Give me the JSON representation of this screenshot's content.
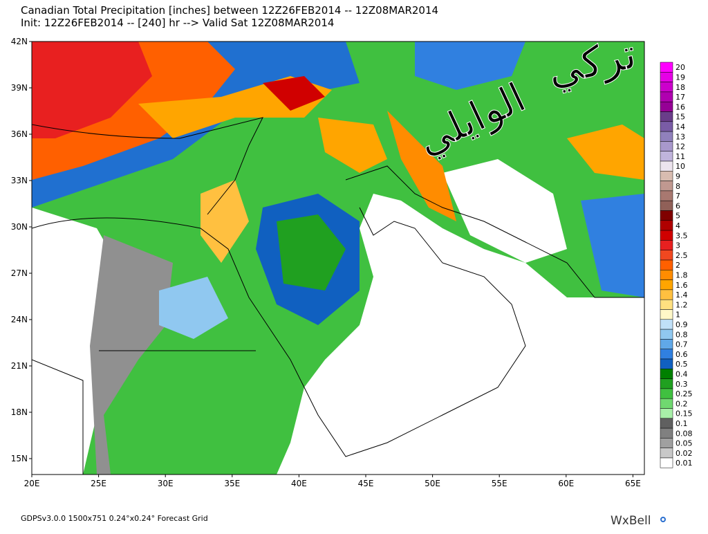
{
  "header": {
    "line1": "Canadian Total Precipitation [inches] between 12Z26FEB2014 -- 12Z08MAR2014",
    "line2": "Init: 12Z26FEB2014 -- [240] hr --> Valid Sat 12Z08MAR2014"
  },
  "map": {
    "lat_labels": [
      "42N",
      "39N",
      "36N",
      "33N",
      "30N",
      "27N",
      "24N",
      "21N",
      "18N",
      "15N"
    ],
    "lon_labels": [
      "20E",
      "25E",
      "30E",
      "35E",
      "40E",
      "45E",
      "50E",
      "55E",
      "60E",
      "65E"
    ],
    "watermark": [
      "تركي",
      "الوايلي"
    ]
  },
  "legend": [
    {
      "label": "20",
      "color": "#ff00ff"
    },
    {
      "label": "19",
      "color": "#e600e6"
    },
    {
      "label": "18",
      "color": "#cc00cc"
    },
    {
      "label": "17",
      "color": "#b000b0"
    },
    {
      "label": "16",
      "color": "#960096"
    },
    {
      "label": "15",
      "color": "#6a3d8a"
    },
    {
      "label": "14",
      "color": "#7a5ca6"
    },
    {
      "label": "13",
      "color": "#9080bc"
    },
    {
      "label": "12",
      "color": "#a898cc"
    },
    {
      "label": "11",
      "color": "#c0b4dc"
    },
    {
      "label": "10",
      "color": "#ece4ee"
    },
    {
      "label": "9",
      "color": "#d8bcb0"
    },
    {
      "label": "8",
      "color": "#c09890"
    },
    {
      "label": "7",
      "color": "#a87870"
    },
    {
      "label": "6",
      "color": "#906058"
    },
    {
      "label": "5",
      "color": "#800000"
    },
    {
      "label": "4",
      "color": "#b00000"
    },
    {
      "label": "3.5",
      "color": "#d00000"
    },
    {
      "label": "3",
      "color": "#e82020"
    },
    {
      "label": "2.5",
      "color": "#f04820"
    },
    {
      "label": "2",
      "color": "#ff6000"
    },
    {
      "label": "1.8",
      "color": "#ff8c00"
    },
    {
      "label": "1.6",
      "color": "#ffa500"
    },
    {
      "label": "1.4",
      "color": "#ffc040"
    },
    {
      "label": "1.2",
      "color": "#ffe080"
    },
    {
      "label": "1",
      "color": "#fff8c8"
    },
    {
      "label": "0.9",
      "color": "#c0e0f8"
    },
    {
      "label": "0.8",
      "color": "#90c8f0"
    },
    {
      "label": "0.7",
      "color": "#60a8e8"
    },
    {
      "label": "0.6",
      "color": "#3080e0"
    },
    {
      "label": "0.5",
      "color": "#1060c0"
    },
    {
      "label": "0.4",
      "color": "#008000"
    },
    {
      "label": "0.3",
      "color": "#20a020"
    },
    {
      "label": "0.25",
      "color": "#40c040"
    },
    {
      "label": "0.2",
      "color": "#70d870"
    },
    {
      "label": "0.15",
      "color": "#a8f0a8"
    },
    {
      "label": "0.1",
      "color": "#606060"
    },
    {
      "label": "0.08",
      "color": "#808080"
    },
    {
      "label": "0.05",
      "color": "#a0a0a0"
    },
    {
      "label": "0.02",
      "color": "#c8c8c8"
    },
    {
      "label": "0.01",
      "color": "#ffffff"
    }
  ],
  "footer": {
    "left": "GDPSv3.0.0 1500x751 0.24°x0.24° Forecast Grid",
    "logo": "WxBell"
  }
}
